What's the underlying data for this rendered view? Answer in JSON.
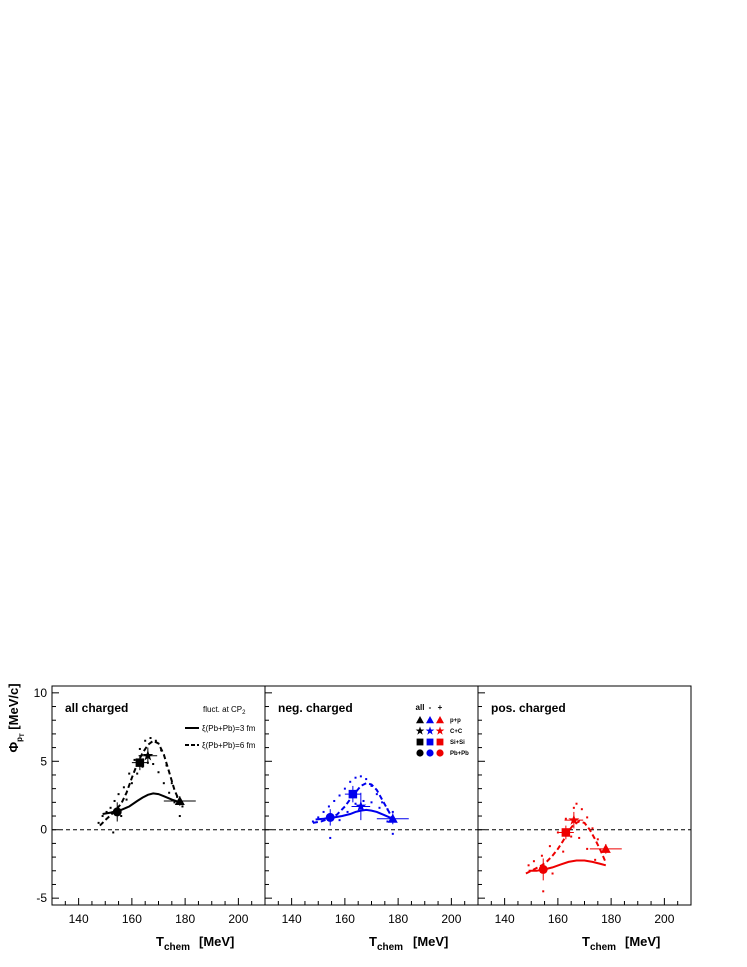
{
  "figure": {
    "y_axis_title_main": "Φ",
    "y_axis_title_sub": "p",
    "y_axis_title_subsub": "T",
    "y_axis_unit": "[MeV/c]",
    "x_axis_title_main": "T",
    "x_axis_title_sub": "chem",
    "x_axis_unit": "[MeV]",
    "legend_fluct_label": "fluct. at CP",
    "legend_fluct_sub": "2",
    "legend_solid_label": "ξ(Pb+Pb)=3 fm",
    "legend_dashed_label": "ξ(Pb+Pb)=6 fm",
    "system_legend": {
      "headers": [
        "all",
        "-",
        "+"
      ],
      "systems": [
        {
          "label": "p+p",
          "marker": "triangle"
        },
        {
          "label": "C+C",
          "marker": "star"
        },
        {
          "label": "Si+Si",
          "marker": "square"
        },
        {
          "label": "Pb+Pb",
          "marker": "circle"
        }
      ]
    }
  },
  "chart_data": [
    {
      "type": "scatter",
      "title": "all charged",
      "color": "#000000",
      "xlim": [
        130,
        210
      ],
      "ylim": [
        -5.5,
        10.5
      ],
      "x_ticks": [
        140,
        160,
        180,
        200
      ],
      "y_ticks": [
        -5,
        0,
        5,
        10
      ],
      "reference_line_y": 0,
      "points": [
        {
          "system": "p+p",
          "marker": "triangle",
          "x": 178,
          "y": 2.1,
          "xerr": 6,
          "yerr": 0.35
        },
        {
          "system": "C+C",
          "marker": "star",
          "x": 166,
          "y": 5.4,
          "xerr": 3.5,
          "yerr": 0.6
        },
        {
          "system": "Si+Si",
          "marker": "square",
          "x": 163,
          "y": 4.9,
          "xerr": 3,
          "yerr": 0.55
        },
        {
          "system": "Pb+Pb",
          "marker": "circle",
          "x": 154.5,
          "y": 1.3,
          "xerr": 1.5,
          "yerr": 0.7
        }
      ],
      "series": [
        {
          "name": "ξ(Pb+Pb)=3 fm",
          "style": "solid",
          "x": [
            149,
            152,
            156,
            159,
            162,
            164,
            166,
            168,
            170,
            172,
            175,
            178
          ],
          "y": [
            1.15,
            1.25,
            1.45,
            1.7,
            2.1,
            2.35,
            2.55,
            2.65,
            2.6,
            2.45,
            2.2,
            2.0
          ]
        },
        {
          "name": "ξ(Pb+Pb)=6 fm",
          "style": "dashed",
          "x": [
            148,
            150,
            152,
            154,
            156,
            158,
            160,
            162,
            164,
            166,
            168,
            170,
            172,
            174,
            176,
            178
          ],
          "y": [
            0.3,
            0.7,
            1.05,
            1.45,
            1.9,
            2.7,
            3.8,
            4.8,
            5.6,
            6.2,
            6.5,
            6.3,
            5.5,
            4.2,
            2.9,
            2.0
          ]
        }
      ],
      "band_points": [
        {
          "x": 147.5,
          "y": 0.5
        },
        {
          "x": 149,
          "y": 1.0
        },
        {
          "x": 150.5,
          "y": 1.3
        },
        {
          "x": 152,
          "y": 1.6
        },
        {
          "x": 153.5,
          "y": 2.1
        },
        {
          "x": 155,
          "y": 2.6
        },
        {
          "x": 157,
          "y": 3.1
        },
        {
          "x": 159,
          "y": 4.1
        },
        {
          "x": 161,
          "y": 5.1
        },
        {
          "x": 163,
          "y": 5.9
        },
        {
          "x": 165,
          "y": 6.5
        },
        {
          "x": 167,
          "y": 6.7
        },
        {
          "x": 169,
          "y": 6.5
        },
        {
          "x": 171,
          "y": 5.8
        },
        {
          "x": 173,
          "y": 4.7
        },
        {
          "x": 175,
          "y": 3.4
        },
        {
          "x": 177,
          "y": 2.4
        },
        {
          "x": 179,
          "y": 1.7
        },
        {
          "x": 153,
          "y": -0.2
        },
        {
          "x": 156,
          "y": 1.0
        },
        {
          "x": 158,
          "y": 2.2
        },
        {
          "x": 160,
          "y": 3.4
        },
        {
          "x": 162,
          "y": 4.1
        },
        {
          "x": 164,
          "y": 4.6
        },
        {
          "x": 166,
          "y": 4.9
        },
        {
          "x": 168,
          "y": 4.8
        },
        {
          "x": 170,
          "y": 4.2
        },
        {
          "x": 172,
          "y": 3.4
        },
        {
          "x": 174,
          "y": 2.7
        },
        {
          "x": 176,
          "y": 2.0
        },
        {
          "x": 178,
          "y": 1.0
        }
      ]
    },
    {
      "type": "scatter",
      "title": "neg. charged",
      "color": "#0000ee",
      "xlim": [
        130,
        210
      ],
      "ylim": [
        -5.5,
        10.5
      ],
      "x_ticks": [
        140,
        160,
        180,
        200
      ],
      "y_ticks": [
        -5,
        0,
        5,
        10
      ],
      "reference_line_y": 0,
      "points": [
        {
          "system": "p+p",
          "marker": "triangle",
          "x": 178,
          "y": 0.8,
          "xerr": 6,
          "yerr": 0.4
        },
        {
          "system": "C+C",
          "marker": "star",
          "x": 166,
          "y": 1.7,
          "xerr": 3.5,
          "yerr": 1.0
        },
        {
          "system": "Si+Si",
          "marker": "square",
          "x": 163,
          "y": 2.6,
          "xerr": 3,
          "yerr": 0.6
        },
        {
          "system": "Pb+Pb",
          "marker": "circle",
          "x": 154.5,
          "y": 0.9,
          "xerr": 1.5,
          "yerr": 0.6
        }
      ],
      "series": [
        {
          "name": "ξ(Pb+Pb)=3 fm",
          "style": "solid",
          "x": [
            149,
            152,
            156,
            159,
            162,
            164,
            166,
            168,
            170,
            172,
            175,
            178
          ],
          "y": [
            0.75,
            0.8,
            0.9,
            1.0,
            1.15,
            1.3,
            1.4,
            1.45,
            1.4,
            1.3,
            1.05,
            0.8
          ]
        },
        {
          "name": "ξ(Pb+Pb)=6 fm",
          "style": "dashed",
          "x": [
            148,
            151,
            154,
            157,
            160,
            163,
            166,
            168,
            170,
            172,
            174,
            176,
            178
          ],
          "y": [
            0.5,
            0.6,
            0.8,
            1.1,
            1.7,
            2.5,
            3.2,
            3.4,
            3.3,
            2.9,
            2.2,
            1.5,
            0.8
          ]
        }
      ],
      "band_points": [
        {
          "x": 148,
          "y": 0.6
        },
        {
          "x": 150,
          "y": 0.9
        },
        {
          "x": 152,
          "y": 1.3
        },
        {
          "x": 154,
          "y": 1.7
        },
        {
          "x": 156,
          "y": 2.1
        },
        {
          "x": 158,
          "y": 2.5
        },
        {
          "x": 160,
          "y": 3.0
        },
        {
          "x": 162,
          "y": 3.5
        },
        {
          "x": 164,
          "y": 3.8
        },
        {
          "x": 166,
          "y": 3.9
        },
        {
          "x": 168,
          "y": 3.7
        },
        {
          "x": 170,
          "y": 3.2
        },
        {
          "x": 172,
          "y": 2.6
        },
        {
          "x": 174,
          "y": 2.0
        },
        {
          "x": 176,
          "y": 1.5
        },
        {
          "x": 178,
          "y": 1.3
        },
        {
          "x": 154.5,
          "y": -0.6
        },
        {
          "x": 158,
          "y": 0.7
        },
        {
          "x": 161,
          "y": 1.3
        },
        {
          "x": 164,
          "y": 1.9
        },
        {
          "x": 167,
          "y": 2.1
        },
        {
          "x": 170,
          "y": 2.0
        },
        {
          "x": 173,
          "y": 1.6
        },
        {
          "x": 176,
          "y": 0.6
        },
        {
          "x": 178,
          "y": -0.3
        }
      ]
    },
    {
      "type": "scatter",
      "title": "pos. charged",
      "color": "#ee0000",
      "xlim": [
        130,
        210
      ],
      "ylim": [
        -5.5,
        10.5
      ],
      "x_ticks": [
        140,
        160,
        180,
        200
      ],
      "y_ticks": [
        -5,
        0,
        5,
        10
      ],
      "reference_line_y": 0,
      "points": [
        {
          "system": "p+p",
          "marker": "triangle",
          "x": 178,
          "y": -1.4,
          "xerr": 6,
          "yerr": 0.35
        },
        {
          "system": "C+C",
          "marker": "star",
          "x": 166,
          "y": 0.7,
          "xerr": 3.5,
          "yerr": 0.6
        },
        {
          "system": "Si+Si",
          "marker": "square",
          "x": 163,
          "y": -0.2,
          "xerr": 3,
          "yerr": 0.5
        },
        {
          "system": "Pb+Pb",
          "marker": "circle",
          "x": 154.5,
          "y": -2.9,
          "xerr": 1.5,
          "yerr": 0.8
        }
      ],
      "series": [
        {
          "name": "ξ(Pb+Pb)=3 fm",
          "style": "solid",
          "x": [
            149,
            152,
            155,
            158,
            161,
            164,
            167,
            170,
            173,
            176,
            178
          ],
          "y": [
            -3.0,
            -3.0,
            -2.9,
            -2.75,
            -2.55,
            -2.35,
            -2.25,
            -2.25,
            -2.35,
            -2.5,
            -2.6
          ]
        },
        {
          "name": "ξ(Pb+Pb)=6 fm",
          "style": "dashed",
          "x": [
            148,
            150,
            152,
            154,
            156,
            158,
            160,
            162,
            164,
            166,
            168,
            170,
            172,
            174,
            176,
            178
          ],
          "y": [
            -3.2,
            -3.0,
            -2.8,
            -2.6,
            -2.3,
            -1.9,
            -1.4,
            -0.8,
            -0.1,
            0.4,
            0.6,
            0.5,
            0.0,
            -0.7,
            -1.5,
            -2.4
          ]
        }
      ],
      "band_points": [
        {
          "x": 149,
          "y": -2.6
        },
        {
          "x": 151,
          "y": -2.3
        },
        {
          "x": 154,
          "y": -1.9
        },
        {
          "x": 157,
          "y": -1.2
        },
        {
          "x": 160,
          "y": -0.2
        },
        {
          "x": 163,
          "y": 0.8
        },
        {
          "x": 166,
          "y": 1.6
        },
        {
          "x": 167,
          "y": 1.9
        },
        {
          "x": 169,
          "y": 1.5
        },
        {
          "x": 171,
          "y": 0.9
        },
        {
          "x": 173,
          "y": 0.1
        },
        {
          "x": 175,
          "y": -0.7
        },
        {
          "x": 177,
          "y": -1.6
        },
        {
          "x": 154.5,
          "y": -4.5
        },
        {
          "x": 158,
          "y": -3.2
        },
        {
          "x": 162,
          "y": -1.6
        },
        {
          "x": 165,
          "y": -0.5
        },
        {
          "x": 168,
          "y": -0.6
        },
        {
          "x": 171,
          "y": -1.4
        },
        {
          "x": 174,
          "y": -2.2
        }
      ]
    }
  ]
}
